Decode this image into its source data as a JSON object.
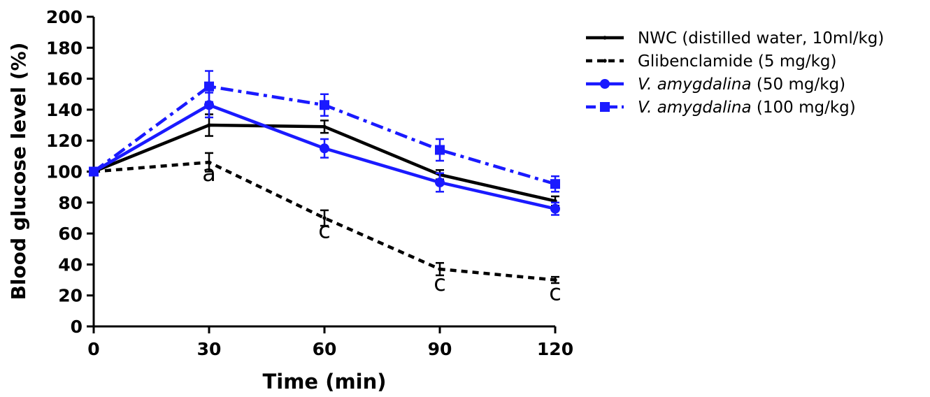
{
  "chart_data": {
    "type": "line",
    "xlabel": "Time (min)",
    "ylabel": "Blood glucose level (%)",
    "xlim": [
      0,
      120
    ],
    "ylim": [
      0,
      200
    ],
    "xticks": [
      0,
      30,
      60,
      90,
      120
    ],
    "yticks": [
      0,
      20,
      40,
      60,
      80,
      100,
      120,
      140,
      160,
      180,
      200
    ],
    "grid": false,
    "legend_position": "top-right",
    "x": [
      0,
      30,
      60,
      90,
      120
    ],
    "series": [
      {
        "name_parts": [
          {
            "text": "NWC (distilled water, 10ml/kg)",
            "italic": false
          }
        ],
        "color": "#000000",
        "dash": "solid",
        "marker": "dot",
        "values": [
          100,
          130,
          129,
          98,
          81
        ],
        "errors": [
          0,
          7,
          4,
          3,
          3
        ]
      },
      {
        "name_parts": [
          {
            "text": "Glibenclamide (5 mg/kg)",
            "italic": false
          }
        ],
        "color": "#000000",
        "dash": "dashed",
        "marker": "dot",
        "values": [
          100,
          106,
          70,
          37,
          30
        ],
        "errors": [
          0,
          6,
          5,
          4,
          2
        ]
      },
      {
        "name_parts": [
          {
            "text": "V. amygdalina",
            "italic": true
          },
          {
            "text": " (50 mg/kg)",
            "italic": false
          }
        ],
        "color": "#1a1aff",
        "dash": "solid",
        "marker": "circle",
        "values": [
          100,
          143,
          115,
          93,
          76
        ],
        "errors": [
          0,
          8,
          6,
          6,
          4
        ]
      },
      {
        "name_parts": [
          {
            "text": "V. amygdalina",
            "italic": true
          },
          {
            "text": " (100 mg/kg)",
            "italic": false
          }
        ],
        "color": "#1a1aff",
        "dash": "dashdot",
        "marker": "square",
        "values": [
          100,
          155,
          143,
          114,
          92
        ],
        "errors": [
          0,
          10,
          7,
          7,
          5
        ]
      }
    ],
    "annotations": [
      {
        "x": 30,
        "y": 94,
        "text": "a"
      },
      {
        "x": 60,
        "y": 57,
        "text": "c"
      },
      {
        "x": 90,
        "y": 23,
        "text": "c"
      },
      {
        "x": 120,
        "y": 17,
        "text": "c"
      }
    ]
  }
}
